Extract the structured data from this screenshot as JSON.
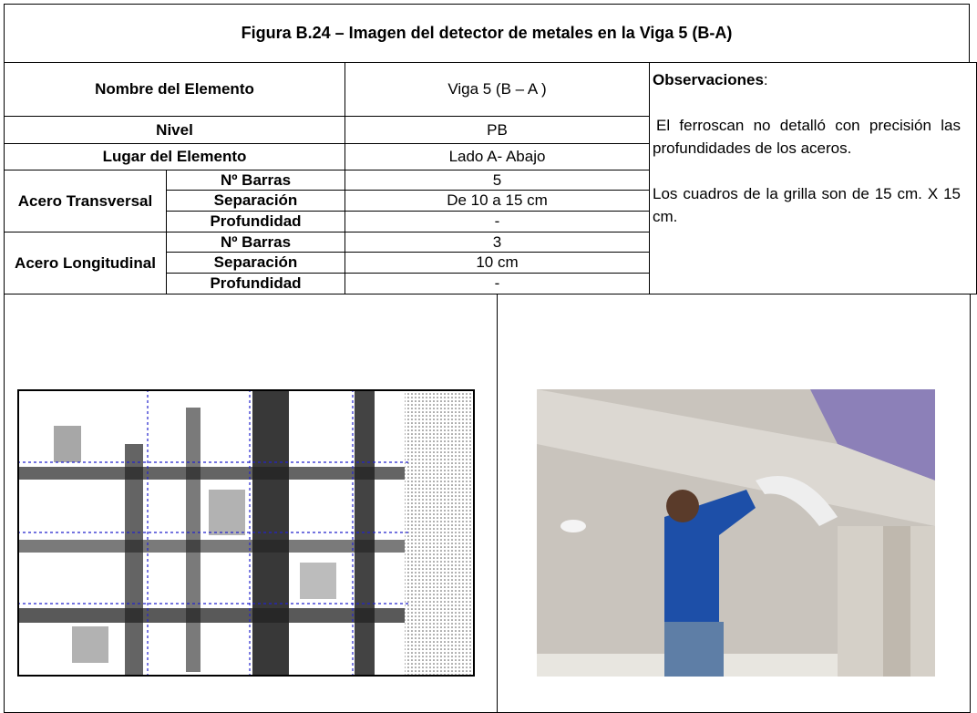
{
  "title": "Figura B.24 – Imagen del detector de metales en la Viga 5 (B-A)",
  "table": {
    "rows": [
      [
        "Nombre del Elemento",
        "Viga 5 (B – A )"
      ],
      [
        "Nivel",
        "PB"
      ],
      [
        "Lugar del Elemento",
        "Lado A- Abajo"
      ],
      [
        "Acero Transversal",
        "Nº  Barras",
        "5"
      ],
      [
        "Separación",
        "De 10 a 15 cm"
      ],
      [
        "Profundidad",
        "-"
      ],
      [
        "Acero Longitudinal",
        "Nº  Barras",
        "3"
      ],
      [
        "Separación",
        "10 cm"
      ],
      [
        "Profundidad",
        "-"
      ]
    ]
  },
  "observations": {
    "label": "Observaciones",
    "colon": ":",
    "paragraphs": [
      "El ferroscan  no detalló con precisión las profundidades de los aceros.",
      "Los cuadros de la grilla son de 15 cm. X 15 cm."
    ]
  }
}
